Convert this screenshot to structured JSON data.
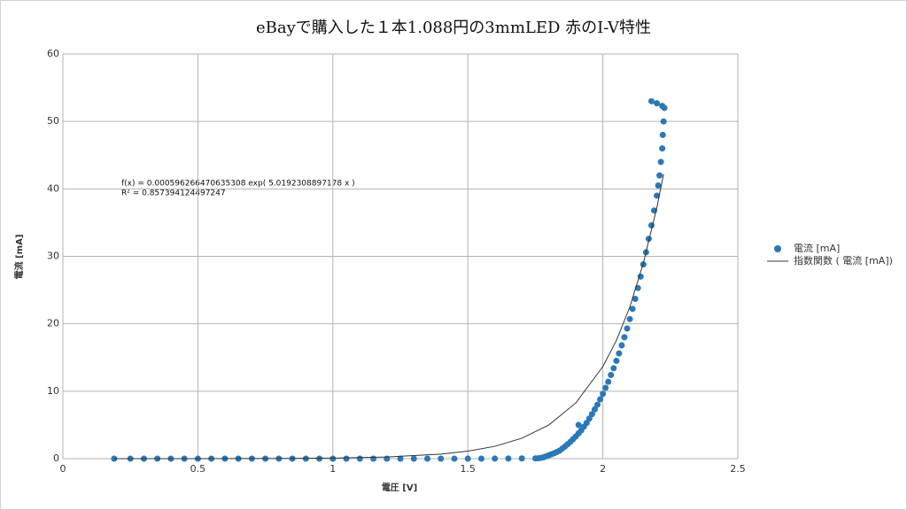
{
  "chart_data": {
    "type": "scatter",
    "title": "eBayで購入した１本1.088円の3mmLED 赤のI-V特性",
    "x_label": "電圧 [V]",
    "y_label": "電流 [mA]",
    "annotations": [
      "f(x) = 0.000596266470635308 exp( 5.0192308897178 x )",
      "R² = 0.857394124497247"
    ],
    "xlim": [
      0,
      2.5
    ],
    "xticks": [
      0,
      0.5,
      1,
      1.5,
      2,
      2.5
    ],
    "ylim": [
      0,
      60
    ],
    "yticks": [
      0,
      10,
      20,
      30,
      40,
      50,
      60
    ],
    "grid": true,
    "legend": "right",
    "series": [
      {
        "name": "電流 [mA]",
        "color": "#2a78b8",
        "marker": "circle",
        "x": [
          0.19,
          0.25,
          0.3,
          0.35,
          0.4,
          0.45,
          0.5,
          0.55,
          0.6,
          0.65,
          0.7,
          0.75,
          0.8,
          0.85,
          0.9,
          0.95,
          1.0,
          1.05,
          1.1,
          1.15,
          1.2,
          1.25,
          1.3,
          1.35,
          1.4,
          1.45,
          1.5,
          1.55,
          1.6,
          1.65,
          1.7,
          1.75,
          1.76,
          1.77,
          1.78,
          1.79,
          1.8,
          1.81,
          1.82,
          1.83,
          1.84,
          1.85,
          1.86,
          1.87,
          1.88,
          1.89,
          1.9,
          1.91,
          1.92,
          1.93,
          1.94,
          1.95,
          1.96,
          1.97,
          1.98,
          1.99,
          2.0,
          2.01,
          2.02,
          2.03,
          2.04,
          2.05,
          2.06,
          2.07,
          2.08,
          2.09,
          2.1,
          2.11,
          2.12,
          2.13,
          2.14,
          2.15,
          2.16,
          2.17,
          2.18,
          2.19,
          2.2,
          2.205,
          2.21,
          2.215,
          2.22,
          2.222,
          2.225,
          2.228,
          2.22,
          2.2,
          2.18,
          1.91
        ],
        "values": [
          0,
          0,
          0,
          0,
          0,
          0,
          0,
          0,
          0,
          0,
          0,
          0,
          0,
          0,
          0,
          0,
          0,
          0,
          0,
          0,
          0,
          0,
          0,
          0,
          0,
          0,
          0,
          0,
          0.01,
          0.02,
          0.03,
          0.04,
          0.05,
          0.12,
          0.2,
          0.35,
          0.5,
          0.65,
          0.8,
          1.0,
          1.2,
          1.5,
          1.8,
          2.15,
          2.5,
          2.9,
          3.3,
          3.75,
          4.2,
          4.75,
          5.3,
          5.95,
          6.6,
          7.3,
          8.0,
          8.8,
          9.6,
          10.5,
          11.4,
          12.4,
          13.4,
          14.5,
          15.6,
          16.8,
          18.0,
          19.3,
          20.7,
          22.2,
          23.7,
          25.3,
          27.0,
          28.8,
          30.6,
          32.6,
          34.6,
          36.8,
          39.0,
          40.5,
          42,
          44,
          46,
          48,
          50,
          52,
          52.3,
          52.7,
          53.0,
          5.0
        ]
      },
      {
        "name": "指数関数 ( 電流 [mA])",
        "color": "#333333",
        "marker": "line",
        "x": [
          0.19,
          0.5,
          0.8,
          1.0,
          1.2,
          1.4,
          1.5,
          1.6,
          1.7,
          1.8,
          1.9,
          2.0,
          2.05,
          2.1,
          2.15,
          2.2,
          2.225
        ],
        "values": [
          0.0015,
          0.007,
          0.033,
          0.09,
          0.246,
          0.67,
          1.11,
          1.83,
          3.03,
          5.0,
          8.26,
          13.65,
          17.5,
          22.5,
          29.0,
          37.2,
          42.2
        ]
      }
    ]
  }
}
